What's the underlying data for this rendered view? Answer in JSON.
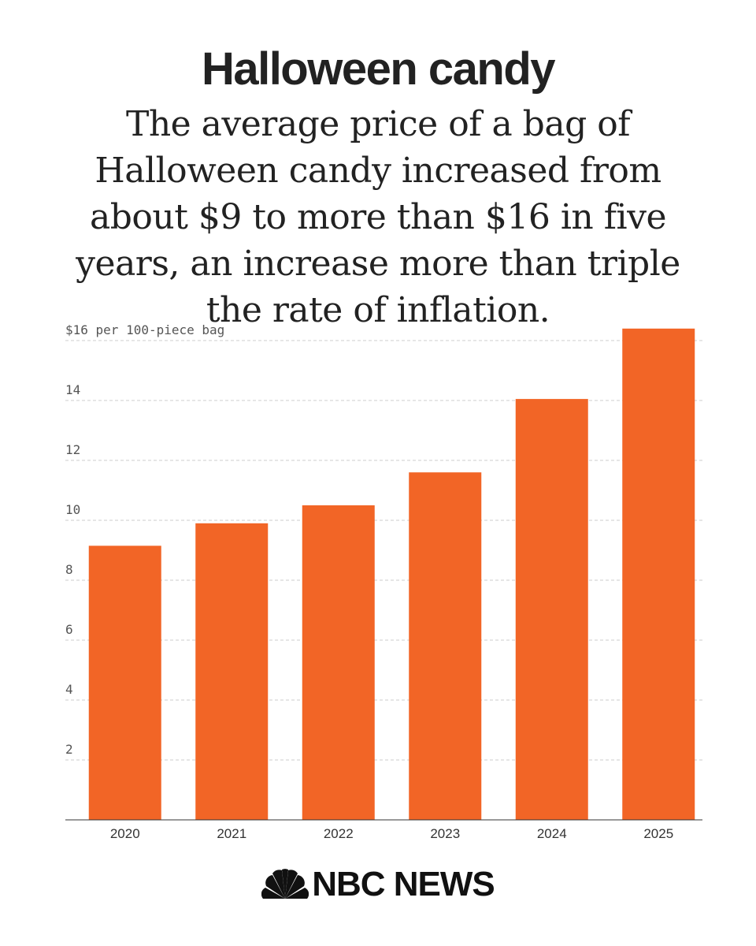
{
  "header": {
    "title": "Halloween candy",
    "subtitle": "The average price of a bag of Halloween candy increased from about $9 to more than $16 in five years, an increase more than triple the rate of inflation."
  },
  "chart_data": {
    "type": "bar",
    "title": "Halloween candy",
    "ylabel": "$16 per 100-piece bag",
    "xlabel": "",
    "categories": [
      "2020",
      "2021",
      "2022",
      "2023",
      "2024",
      "2025"
    ],
    "values": [
      9.15,
      9.9,
      10.5,
      11.6,
      14.05,
      16.4
    ],
    "ylim": [
      0,
      16.4
    ],
    "yticks": [
      2,
      4,
      6,
      8,
      10,
      12,
      14,
      16
    ],
    "ytick_labels": [
      "2",
      "4",
      "6",
      "8",
      "10",
      "12",
      "14",
      "$16 per 100-piece bag"
    ],
    "grid": true,
    "bar_color": "#f26526",
    "grid_color": "#cccccc"
  },
  "footer": {
    "logo_text": "NBC NEWS",
    "logo_icon": "peacock-icon",
    "peacock_colors": [
      "#111111"
    ]
  }
}
